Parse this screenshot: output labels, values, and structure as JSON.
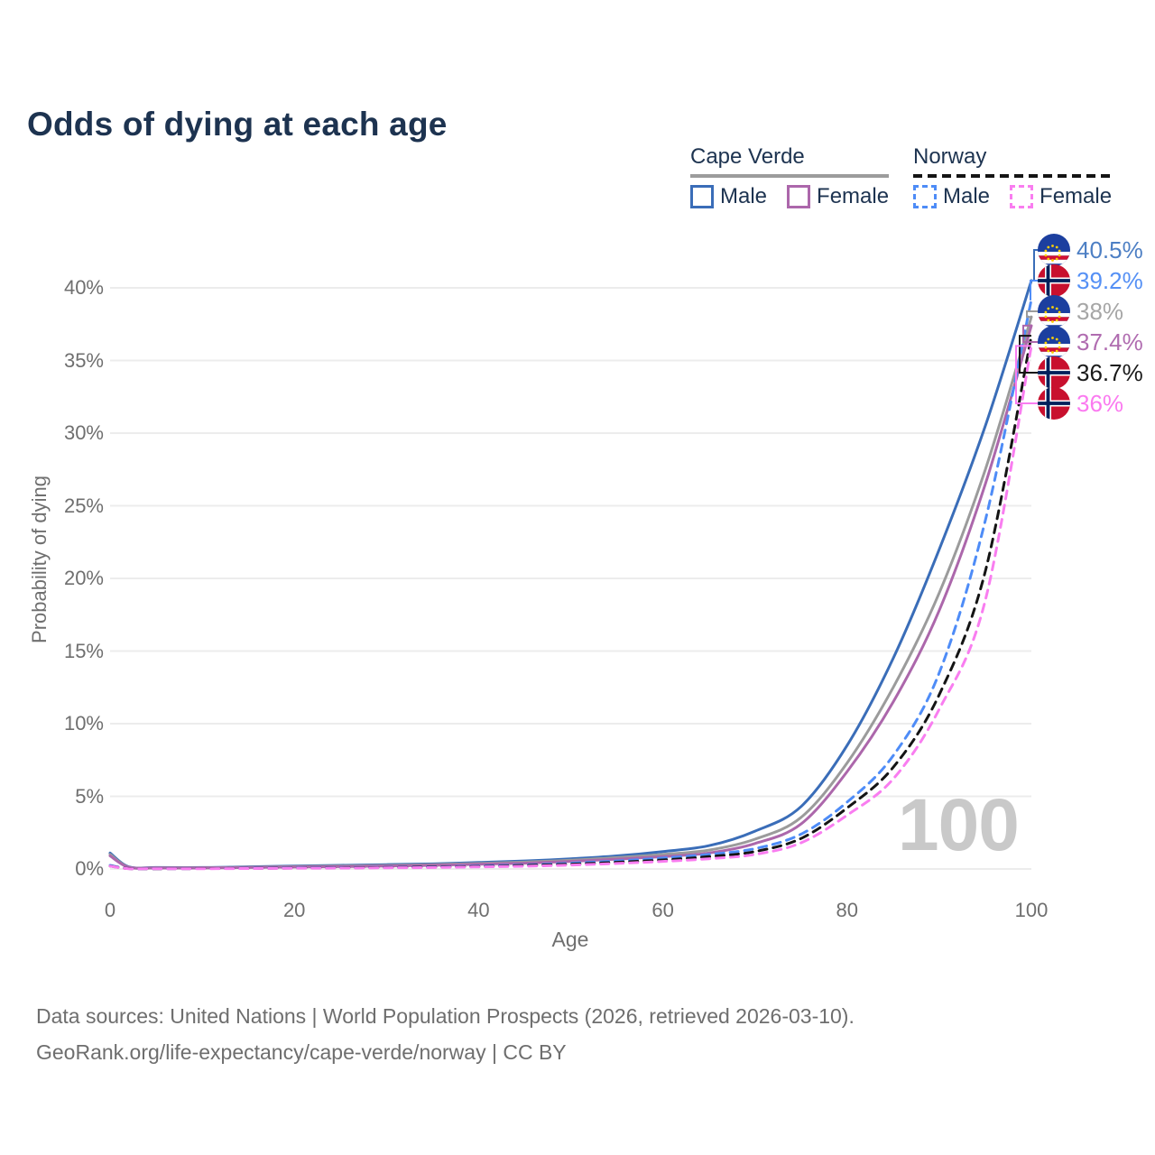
{
  "title": "Odds of dying at each age",
  "watermark": "100",
  "legend": {
    "groups": [
      {
        "country": "Cape Verde",
        "line_style": "solid",
        "underline_color": "#9c9c9c",
        "items": [
          {
            "label": "Male",
            "color": "#3a6db8"
          },
          {
            "label": "Female",
            "color": "#ac67ab"
          }
        ]
      },
      {
        "country": "Norway",
        "line_style": "dashed",
        "underline_color": "#141414",
        "items": [
          {
            "label": "Male",
            "color": "#4e8cf7"
          },
          {
            "label": "Female",
            "color": "#f97df0"
          }
        ]
      }
    ]
  },
  "chart_data": {
    "type": "line",
    "title": "Odds of dying at each age",
    "xlabel": "Age",
    "ylabel": "Probability of dying",
    "xlim": [
      0,
      100
    ],
    "ylim": [
      0,
      43
    ],
    "grid": "horizontal",
    "xticks": [
      0,
      20,
      40,
      60,
      80,
      100
    ],
    "yticks": [
      0,
      5,
      10,
      15,
      20,
      25,
      30,
      35,
      40
    ],
    "ytick_suffix": "%",
    "x": [
      0,
      2,
      5,
      10,
      15,
      20,
      25,
      30,
      35,
      40,
      45,
      50,
      55,
      60,
      65,
      70,
      75,
      80,
      85,
      90,
      95,
      100
    ],
    "series": [
      {
        "name": "Cape Verde Male",
        "flag": "cape-verde",
        "dash": "solid",
        "color": "#3a6db8",
        "label_color": "#4d7fc4",
        "end_label": "40.5%",
        "values": [
          1.1,
          0.15,
          0.1,
          0.1,
          0.15,
          0.2,
          0.25,
          0.3,
          0.35,
          0.45,
          0.55,
          0.7,
          0.9,
          1.2,
          1.6,
          2.6,
          4.3,
          8.5,
          14.5,
          22.0,
          30.5,
          40.5
        ]
      },
      {
        "name": "Norway Male",
        "flag": "norway",
        "dash": "dashed",
        "color": "#4e8cf7",
        "label_color": "#5590f5",
        "end_label": "39.2%",
        "values": [
          0.25,
          0.03,
          0.02,
          0.03,
          0.05,
          0.08,
          0.1,
          0.12,
          0.15,
          0.2,
          0.28,
          0.4,
          0.55,
          0.75,
          1.0,
          1.4,
          2.4,
          4.6,
          7.8,
          13.5,
          24.0,
          39.2
        ]
      },
      {
        "name": "Cape Verde Both sexes",
        "flag": "cape-verde",
        "dash": "solid",
        "color": "#9b9b9b",
        "label_color": "#a6a6a6",
        "end_label": "38%",
        "values": [
          1.0,
          0.13,
          0.08,
          0.08,
          0.12,
          0.16,
          0.2,
          0.24,
          0.3,
          0.38,
          0.47,
          0.6,
          0.78,
          1.0,
          1.3,
          2.05,
          3.55,
          7.3,
          12.5,
          19.0,
          27.5,
          38.0
        ]
      },
      {
        "name": "Cape Verde Female",
        "flag": "cape-verde",
        "dash": "solid",
        "color": "#ac67ab",
        "label_color": "#b06cb0",
        "end_label": "37.4%",
        "values": [
          0.9,
          0.12,
          0.07,
          0.07,
          0.1,
          0.13,
          0.16,
          0.2,
          0.25,
          0.32,
          0.4,
          0.52,
          0.68,
          0.85,
          1.1,
          1.75,
          3.1,
          6.7,
          11.5,
          17.8,
          26.5,
          37.4
        ]
      },
      {
        "name": "Norway Both sexes",
        "flag": "norway",
        "dash": "dashed",
        "color": "#141414",
        "label_color": "#1a1a1a",
        "end_label": "36.7%",
        "values": [
          0.2,
          0.03,
          0.02,
          0.03,
          0.04,
          0.06,
          0.08,
          0.1,
          0.13,
          0.17,
          0.24,
          0.33,
          0.46,
          0.62,
          0.85,
          1.2,
          2.1,
          4.2,
          7.0,
          12.0,
          20.5,
          36.7
        ]
      },
      {
        "name": "Norway Female",
        "flag": "norway",
        "dash": "dashed",
        "color": "#f97df0",
        "label_color": "#fb7af0",
        "end_label": "36%",
        "values": [
          0.2,
          0.02,
          0.02,
          0.02,
          0.03,
          0.05,
          0.06,
          0.08,
          0.1,
          0.14,
          0.19,
          0.27,
          0.38,
          0.52,
          0.7,
          1.0,
          1.8,
          3.7,
          6.2,
          11.0,
          18.5,
          36.0
        ]
      }
    ]
  },
  "footer": {
    "line1": "Data sources: United Nations | World Population Prospects (2026, retrieved 2026-03-10).",
    "line2": "GeoRank.org/life-expectancy/cape-verde/norway | CC BY"
  }
}
